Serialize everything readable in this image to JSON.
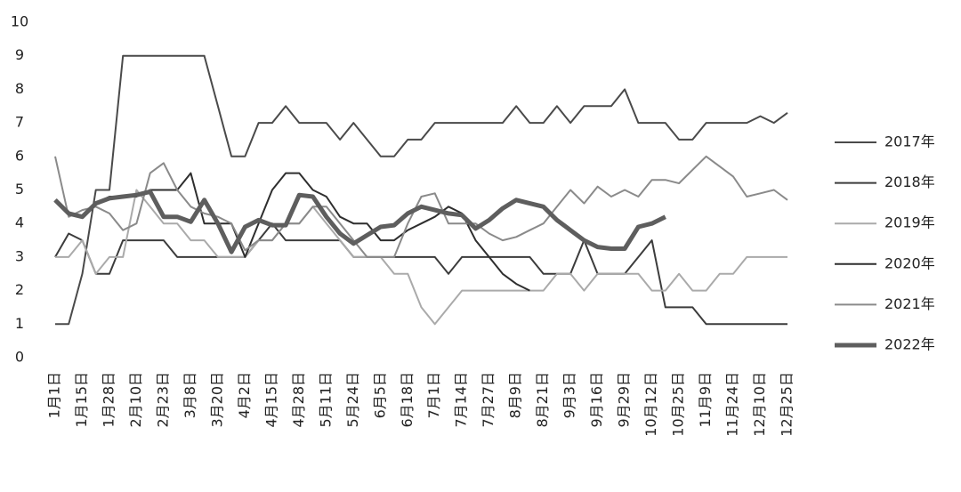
{
  "chart_data": {
    "type": "line",
    "categories": [
      "1月1日",
      null,
      "1月15日",
      null,
      "1月28日",
      null,
      "2月10日",
      null,
      "2月23日",
      null,
      "3月8日",
      null,
      "3月20日",
      null,
      "4月2日",
      null,
      "4月15日",
      null,
      "4月28日",
      null,
      "5月11日",
      null,
      "5月24日",
      null,
      "6月5日",
      null,
      "6月18日",
      null,
      "7月1日",
      null,
      "7月14日",
      null,
      "7月27日",
      null,
      "8月9日",
      null,
      "8月21日",
      null,
      "9月3日",
      null,
      "9月16日",
      null,
      "9月29日",
      null,
      "10月12日",
      null,
      "10月25日",
      null,
      "11月9日",
      null,
      "11月24日",
      null,
      "12月10日",
      null,
      "12月25日"
    ],
    "ylim": [
      0,
      10
    ],
    "yticks": [
      0,
      1,
      2,
      3,
      4,
      5,
      6,
      7,
      8,
      9,
      10
    ],
    "series": [
      {
        "name": "2017年",
        "color": "#4a4a4a",
        "width": 2,
        "values": [
          1,
          1,
          2.5,
          5,
          5,
          9,
          9,
          9,
          9,
          9,
          9,
          9,
          7.5,
          6,
          6,
          7,
          7,
          7.5,
          7,
          7,
          7,
          6.5,
          7,
          6.5,
          6,
          6,
          6.5,
          6.5,
          7,
          7,
          7,
          7,
          7,
          7,
          7.5,
          7,
          7,
          7.5,
          7,
          7.5,
          7.5,
          7.5,
          8,
          7,
          7,
          7,
          6.5,
          6.5,
          7,
          7,
          7,
          7,
          7.2,
          7,
          7.3
        ]
      },
      {
        "name": "2018年",
        "color": "#3c3c3c",
        "width": 2,
        "values": [
          3,
          3.7,
          3.5,
          2.5,
          2.5,
          3.5,
          3.5,
          3.5,
          3.5,
          3,
          3,
          3,
          3,
          3,
          3,
          3.5,
          4,
          3.5,
          3.5,
          3.5,
          3.5,
          3.5,
          3,
          3,
          3,
          3,
          3,
          3,
          3,
          2.5,
          3,
          3,
          3,
          3,
          3,
          3,
          2.5,
          2.5,
          2.5,
          3.5,
          2.5,
          2.5,
          2.5,
          3,
          3.5,
          1.5,
          1.5,
          1.5,
          1,
          1,
          1,
          1,
          1,
          1,
          1
        ]
      },
      {
        "name": "2019年",
        "color": "#aaaaaa",
        "width": 2,
        "values": [
          3,
          3,
          3.5,
          2.5,
          3,
          3,
          5,
          4.5,
          4,
          4,
          3.5,
          3.5,
          3,
          3,
          3,
          3.5,
          3.5,
          4,
          4,
          4.5,
          4,
          3.5,
          3,
          3,
          3,
          2.5,
          2.5,
          1.5,
          1,
          1.5,
          2,
          2,
          2,
          2,
          2,
          2,
          2,
          2.5,
          2.5,
          2,
          2.5,
          2.5,
          2.5,
          2.5,
          2,
          2,
          2.5,
          2,
          2,
          2.5,
          2.5,
          3,
          3,
          3,
          3
        ]
      },
      {
        "name": "2020年",
        "color": "#2e2e2e",
        "width": 2,
        "values": [
          4.7,
          4.3,
          4.2,
          4.6,
          4.8,
          4.8,
          4.8,
          5,
          5,
          5,
          5.5,
          4,
          4,
          4,
          3,
          4,
          5,
          5.5,
          5.5,
          5,
          4.8,
          4.2,
          4,
          4,
          3.5,
          3.5,
          3.8,
          4,
          4.2,
          4.5,
          4.3,
          3.5,
          3,
          2.5,
          2.2,
          2,
          null,
          null,
          null,
          null,
          null,
          null,
          null,
          null,
          null,
          null,
          null,
          null,
          null,
          null,
          null,
          null,
          null,
          null,
          null
        ]
      },
      {
        "name": "2021年",
        "color": "#8a8a8a",
        "width": 2,
        "values": [
          6,
          4.2,
          4.4,
          4.5,
          4.3,
          3.8,
          4,
          5.5,
          5.8,
          5,
          4.5,
          4.3,
          4.2,
          4,
          3.2,
          3.5,
          3.5,
          4,
          4,
          4.5,
          4.5,
          4,
          3.5,
          3,
          3,
          3,
          4,
          4.8,
          4.9,
          4,
          4,
          4,
          3.7,
          3.5,
          3.6,
          3.8,
          4,
          4.5,
          5,
          4.6,
          5.1,
          4.8,
          5,
          4.8,
          5.3,
          5.3,
          5.2,
          5.6,
          6,
          5.7,
          5.4,
          4.8,
          4.9,
          5,
          4.7
        ]
      },
      {
        "name": "2022年",
        "color": "#5e5e5e",
        "width": 5,
        "values": [
          4.7,
          4.3,
          4.2,
          4.6,
          4.75,
          4.8,
          4.85,
          4.95,
          4.2,
          4.2,
          4.05,
          4.7,
          4,
          3.15,
          3.9,
          4.1,
          3.95,
          3.95,
          4.85,
          4.8,
          4.2,
          3.7,
          3.4,
          3.65,
          3.9,
          3.95,
          4.3,
          4.5,
          4.4,
          4.3,
          4.25,
          3.85,
          4.1,
          4.45,
          4.7,
          4.6,
          4.5,
          4.1,
          3.8,
          3.5,
          3.3,
          3.25,
          3.25,
          3.9,
          4,
          4.2,
          null,
          null,
          null,
          null,
          null,
          null,
          null,
          null,
          null
        ]
      }
    ]
  }
}
